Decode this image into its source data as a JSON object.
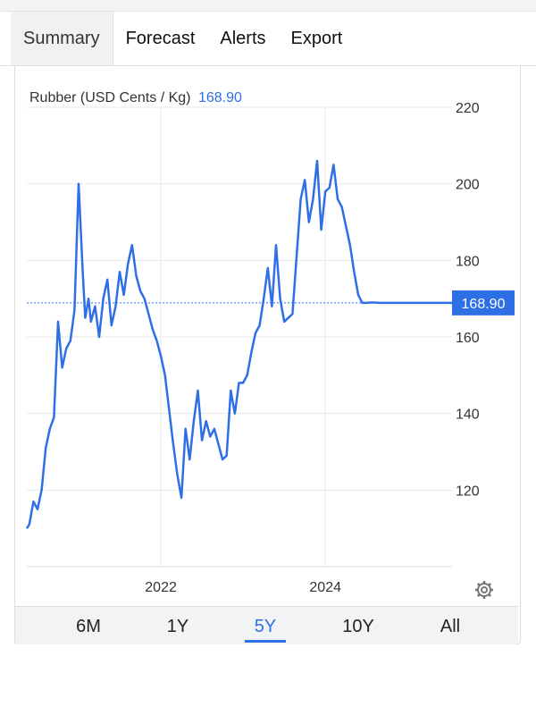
{
  "tabs": [
    {
      "label": "Summary"
    },
    {
      "label": "Forecast"
    },
    {
      "label": "Alerts"
    },
    {
      "label": "Export"
    }
  ],
  "active_tab": "Summary",
  "legend": {
    "name": "Rubber (USD Cents / Kg)",
    "value": "168.90"
  },
  "current_label": "168.90",
  "ranges": [
    {
      "label": "6M"
    },
    {
      "label": "1Y"
    },
    {
      "label": "5Y"
    },
    {
      "label": "10Y"
    },
    {
      "label": "All"
    }
  ],
  "active_range": "5Y",
  "colors": {
    "accent": "#2f6fe6",
    "grid": "#e9e9e9"
  },
  "icons": {
    "settings": "gear-icon"
  },
  "chart_data": {
    "type": "line",
    "title": "Rubber (USD Cents / Kg)",
    "xlabel": "",
    "ylabel": "",
    "ylim": [
      100,
      220
    ],
    "y_ticks": [
      120,
      140,
      160,
      180,
      200,
      220
    ],
    "x_ticks": [
      {
        "label": "2022",
        "x": 2022.0
      },
      {
        "label": "2024",
        "x": 2024.0
      }
    ],
    "xlim": [
      2020.37,
      2025.54
    ],
    "grid": true,
    "current_value": 168.9,
    "series": [
      {
        "name": "Rubber",
        "x": [
          2020.37,
          2020.4,
          2020.45,
          2020.5,
          2020.55,
          2020.6,
          2020.65,
          2020.7,
          2020.75,
          2020.8,
          2020.85,
          2020.9,
          2020.95,
          2021.0,
          2021.05,
          2021.08,
          2021.12,
          2021.15,
          2021.2,
          2021.25,
          2021.3,
          2021.35,
          2021.4,
          2021.45,
          2021.5,
          2021.55,
          2021.6,
          2021.65,
          2021.7,
          2021.75,
          2021.8,
          2021.85,
          2021.9,
          2021.95,
          2022.0,
          2022.05,
          2022.1,
          2022.15,
          2022.2,
          2022.25,
          2022.3,
          2022.35,
          2022.4,
          2022.45,
          2022.5,
          2022.55,
          2022.6,
          2022.65,
          2022.7,
          2022.75,
          2022.8,
          2022.85,
          2022.9,
          2022.95,
          2023.0,
          2023.05,
          2023.1,
          2023.15,
          2023.2,
          2023.25,
          2023.3,
          2023.35,
          2023.4,
          2023.45,
          2023.5,
          2023.55,
          2023.6,
          2023.65,
          2023.7,
          2023.75,
          2023.8,
          2023.85,
          2023.9,
          2023.95,
          2024.0,
          2024.05,
          2024.1,
          2024.15,
          2024.2,
          2024.25,
          2024.3,
          2024.35,
          2024.4,
          2024.45,
          2024.5,
          2024.55,
          2024.6,
          2024.65,
          2024.7,
          2024.75,
          2024.8,
          2024.85,
          2024.9,
          2024.95,
          2025.0,
          2025.05,
          2025.1,
          2025.15,
          2025.2,
          2025.25,
          2025.3,
          2025.35,
          2025.4,
          2025.45,
          2025.5,
          2025.54
        ],
        "y": [
          110,
          111,
          117,
          115,
          120,
          131,
          136,
          139,
          164,
          152,
          157,
          159,
          167,
          200,
          177,
          165,
          170,
          164,
          168,
          160,
          170,
          175,
          163,
          168,
          177,
          171,
          179,
          184,
          176,
          172,
          170,
          166,
          162,
          159,
          155,
          150,
          141,
          132,
          124,
          118,
          136,
          128,
          138,
          146,
          133,
          138,
          134,
          136,
          132,
          128,
          129,
          146,
          140,
          148,
          148,
          150,
          156,
          161,
          163,
          170,
          178,
          168,
          184,
          170,
          164,
          165,
          166,
          181,
          196,
          201,
          190,
          196,
          206,
          188,
          198,
          199,
          205,
          196,
          194,
          189,
          184,
          177,
          171,
          168.9,
          168.9,
          169,
          169,
          168.9,
          168.9,
          168.9,
          168.9,
          168.9,
          168.9,
          168.9,
          168.9,
          168.9,
          168.9,
          168.9,
          168.9,
          168.9,
          168.9,
          168.9,
          168.9,
          168.9,
          168.9,
          168.9
        ]
      }
    ]
  }
}
